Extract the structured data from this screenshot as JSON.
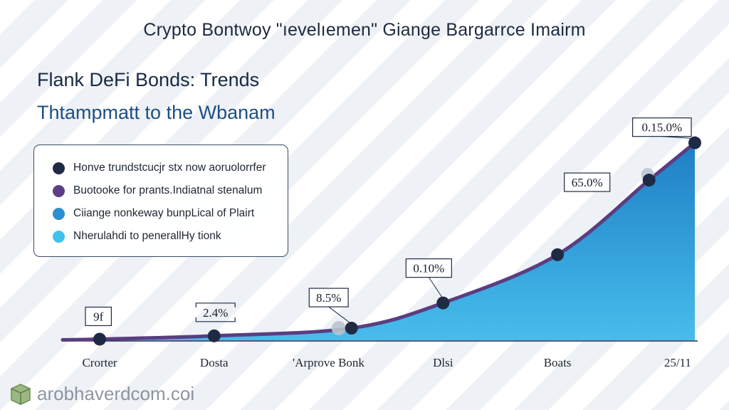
{
  "title": "Crypto Bontwoy \"ıevelıemen\" Giange Bargarrce Imairm",
  "subtitle_1": "Flank DeFi Bonds: Trends",
  "subtitle_2": "Thtampmatt to the Wbanam",
  "watermark_text": "arobhaverdcom.coi",
  "colors": {
    "line": "#5b3d82",
    "point": "#1f2a44",
    "area_top": "#1e7fc4",
    "area_bottom": "#47bdec",
    "axis": "#1f2a44"
  },
  "legend": [
    {
      "label": "Honve trundstcucjr stx now aoruolorrfer",
      "color": "#1f2a44"
    },
    {
      "label": "Buotooke for prants.Indiatnal stenalum",
      "color": "#5e3f86"
    },
    {
      "label": "Ciiange nonkeway bunpLical of Plairt",
      "color": "#2b8fd0"
    },
    {
      "label": "Nherulahdi to penerallHy tionk",
      "color": "#41c2ec"
    }
  ],
  "chart_data": {
    "type": "area",
    "categories": [
      "Crorter",
      "Dosta",
      "'Arprove Bonk",
      "Dlsi",
      "Boats",
      "25/11"
    ],
    "points": [
      {
        "x_label": "Crorter",
        "value": 0.5,
        "label": "9f"
      },
      {
        "x_label": "Dosta",
        "value": 2.0,
        "label": "2.4%"
      },
      {
        "x_label": "'Arprove Bonk",
        "value": 5.5,
        "label": "8.5%"
      },
      {
        "x_label": "Dlsi",
        "value": 17.0,
        "label": "0.10%"
      },
      {
        "x_label": "Boats",
        "value": 39.0,
        "label": ""
      },
      {
        "x_label": "25/11",
        "value": 73.0,
        "label": "65.0%"
      },
      {
        "x_label": "25/11",
        "value": 90.0,
        "label": "0.15.0%"
      }
    ],
    "tick_labels": [
      {
        "label": "Crorter",
        "value_x": 0
      },
      {
        "label": "Dosta",
        "value_x": 1
      },
      {
        "label": "'Arprove Bonk",
        "value_x": 2
      },
      {
        "label": "Dlsi",
        "value_x": 3
      },
      {
        "label": "Boats",
        "value_x": 4
      },
      {
        "label": "25/11",
        "value_x": 5
      }
    ],
    "point_x": [
      0,
      1,
      2.2,
      3,
      4,
      4.8,
      5.2
    ],
    "ylim": [
      0,
      100
    ],
    "xlim": [
      -0.3,
      5.3
    ],
    "grid": false,
    "legend_position": "top-left"
  }
}
